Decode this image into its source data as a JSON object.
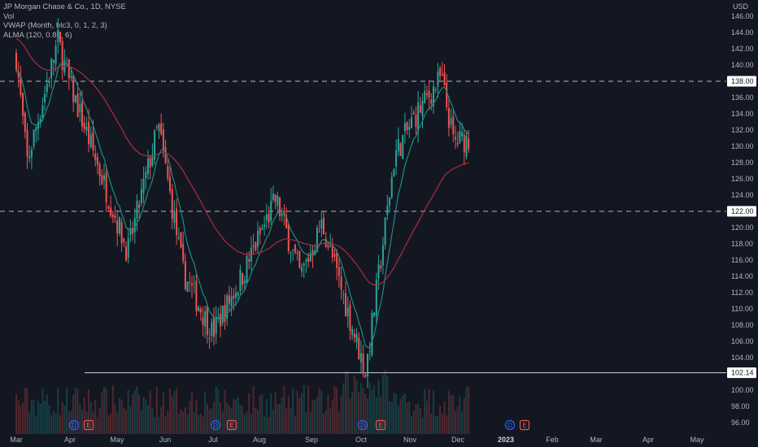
{
  "legend": {
    "title": "JP Morgan Chase & Co., 1D, NYSE",
    "volume": "Vol",
    "vwap": "VWAP (Month, hlc3, 0, 1, 2, 3)",
    "alma": "ALMA (120, 0.85, 6)"
  },
  "colors": {
    "background": "#131722",
    "up": "#26a69a",
    "down": "#ef5350",
    "vwap": "#1e8c80",
    "alma": "#b02b3d",
    "level_line": "#d1d4dc",
    "axis_text": "#b2b5be",
    "dividend_badge": "#2962ff",
    "earnings_badge": "#ef5350"
  },
  "chart_data": {
    "type": "candlestick",
    "currency": "USD",
    "y_ticks": [
      "146.00",
      "144.00",
      "142.00",
      "140.00",
      "138.00",
      "136.00",
      "134.00",
      "132.00",
      "130.00",
      "128.00",
      "126.00",
      "124.00",
      "122.00",
      "120.00",
      "118.00",
      "116.00",
      "114.00",
      "112.00",
      "110.00",
      "108.00",
      "106.00",
      "104.00",
      "102.00",
      "100.00",
      "98.00",
      "96.00"
    ],
    "x_ticks": [
      "Mar",
      "Apr",
      "May",
      "Jun",
      "Jul",
      "Aug",
      "Sep",
      "Oct",
      "Nov",
      "Dec",
      "2023",
      "Feb",
      "Mar",
      "Apr",
      "May"
    ],
    "price_range": [
      95,
      147.6
    ],
    "horizontal_lines": [
      {
        "value": 138.0,
        "style": "dashed",
        "label": "138.00"
      },
      {
        "value": 122.0,
        "style": "dashed",
        "label": "122.00"
      },
      {
        "value": 102.14,
        "style": "solid",
        "label": "102.14"
      }
    ],
    "key_points": [
      {
        "date": "2022-03-01",
        "price": 141
      },
      {
        "date": "2022-03-08",
        "price": 128
      },
      {
        "date": "2022-03-28",
        "price": 143
      },
      {
        "date": "2022-04-04",
        "price": 138
      },
      {
        "date": "2022-05-12",
        "price": 117
      },
      {
        "date": "2022-06-01",
        "price": 132.5
      },
      {
        "date": "2022-06-17",
        "price": 114.5
      },
      {
        "date": "2022-07-06",
        "price": 107
      },
      {
        "date": "2022-07-25",
        "price": 114
      },
      {
        "date": "2022-08-16",
        "price": 123.5
      },
      {
        "date": "2022-09-01",
        "price": 114
      },
      {
        "date": "2022-09-15",
        "price": 120.5
      },
      {
        "date": "2022-10-13",
        "price": 102.14
      },
      {
        "date": "2022-11-01",
        "price": 129
      },
      {
        "date": "2022-11-15",
        "price": 134
      },
      {
        "date": "2022-12-01",
        "price": 138.5
      },
      {
        "date": "2022-12-09",
        "price": 130.5
      },
      {
        "date": "2022-12-20",
        "price": 131
      }
    ],
    "events": [
      {
        "type": "D",
        "month": "Apr"
      },
      {
        "type": "E",
        "month": "Apr"
      },
      {
        "type": "D",
        "month": "Jul"
      },
      {
        "type": "E",
        "month": "Jul"
      },
      {
        "type": "D",
        "month": "Oct"
      },
      {
        "type": "E",
        "month": "Oct"
      },
      {
        "type": "D",
        "month": "2023"
      },
      {
        "type": "E",
        "month": "2023"
      }
    ]
  }
}
